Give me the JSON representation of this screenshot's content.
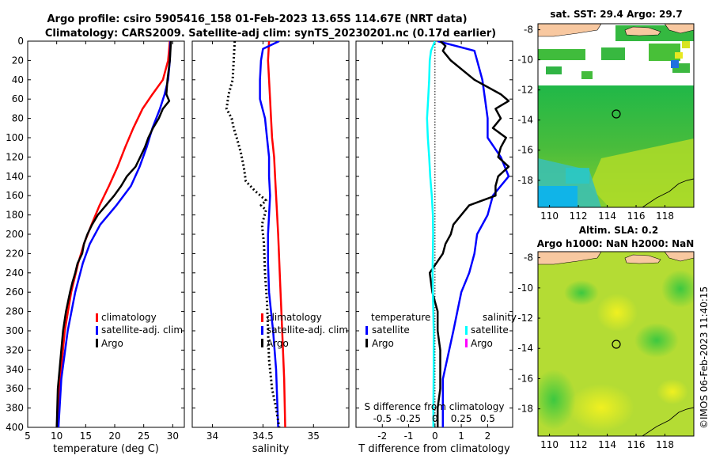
{
  "titles": {
    "line1": "Argo profile: csiro 5905416_158 01-Feb-2023 13.65S 114.67E (NRT data)",
    "line2": "Climatology: CARS2009. Satellite-adj clim: synTS_20230201.nc (0.17d earlier)"
  },
  "colors": {
    "climatology": "#ff0000",
    "satellite": "#0000ff",
    "argo": "#000000",
    "s_satellite": "#00ffff",
    "s_argo": "#ff00ff",
    "land": "#f8c8a0"
  },
  "chart_data": [
    {
      "type": "line",
      "panel": "temperature",
      "xlabel": "temperature (deg C)",
      "ylabel": "depth",
      "xlim": [
        5,
        32
      ],
      "ylim": [
        400,
        0
      ],
      "xticks": [
        "5",
        "10",
        "15",
        "20",
        "25",
        "30"
      ],
      "yticks": [
        "0",
        "20",
        "40",
        "60",
        "80",
        "100",
        "120",
        "140",
        "160",
        "180",
        "200",
        "220",
        "240",
        "260",
        "280",
        "300",
        "320",
        "340",
        "360",
        "380",
        "400"
      ],
      "legend": [
        "climatology",
        "satellite-adj. clim",
        "Argo"
      ],
      "series": [
        {
          "name": "climatology",
          "depth": [
            0,
            20,
            40,
            55,
            70,
            90,
            110,
            130,
            150,
            170,
            190,
            210,
            230,
            260,
            300,
            350,
            400
          ],
          "values": [
            29.5,
            29.2,
            28.3,
            26.5,
            24.8,
            23.2,
            21.8,
            20.5,
            19.0,
            17.4,
            16.0,
            14.7,
            13.7,
            12.5,
            11.4,
            10.6,
            10.0
          ]
        },
        {
          "name": "satellite-adj. clim",
          "depth": [
            0,
            20,
            40,
            55,
            70,
            90,
            110,
            130,
            150,
            170,
            190,
            210,
            230,
            260,
            300,
            350,
            400
          ],
          "values": [
            29.6,
            29.5,
            29.2,
            28.6,
            27.8,
            26.5,
            25.5,
            24.3,
            22.8,
            20.3,
            17.5,
            15.7,
            14.5,
            13.2,
            11.9,
            10.8,
            10.3
          ]
        },
        {
          "name": "Argo",
          "depth": [
            0,
            20,
            40,
            55,
            62,
            70,
            80,
            90,
            100,
            110,
            120,
            130,
            140,
            150,
            160,
            170,
            180,
            190,
            200,
            210,
            220,
            230,
            240,
            250,
            260,
            280,
            300,
            320,
            340,
            360,
            380,
            400
          ],
          "values": [
            29.7,
            29.5,
            29.1,
            28.9,
            29.4,
            28.3,
            27.6,
            26.6,
            25.8,
            25.2,
            24.4,
            23.6,
            22.1,
            21.1,
            19.9,
            18.5,
            17.1,
            16.1,
            15.3,
            14.7,
            14.4,
            13.6,
            13.2,
            12.7,
            12.3,
            11.6,
            11.1,
            10.8,
            10.5,
            10.2,
            10.1,
            10.0
          ]
        }
      ]
    },
    {
      "type": "line",
      "panel": "salinity",
      "xlabel": "salinity",
      "xlim": [
        33.8,
        35.35
      ],
      "ylim": [
        400,
        0
      ],
      "xticks": [
        "34",
        "34.5",
        "35"
      ],
      "legend": [
        "climatology",
        "satellite-adj. clim",
        "Argo"
      ],
      "series": [
        {
          "name": "climatology",
          "depth": [
            0,
            20,
            40,
            60,
            80,
            100,
            120,
            140,
            160,
            180,
            200,
            250,
            300,
            350,
            400
          ],
          "values": [
            34.56,
            34.55,
            34.56,
            34.57,
            34.58,
            34.59,
            34.61,
            34.62,
            34.63,
            34.64,
            34.65,
            34.67,
            34.69,
            34.71,
            34.72
          ]
        },
        {
          "name": "satellite-adj. clim",
          "depth": [
            0,
            8,
            20,
            40,
            60,
            80,
            100,
            120,
            140,
            160,
            180,
            200,
            230,
            260,
            280,
            300,
            340,
            400
          ],
          "values": [
            34.66,
            34.5,
            34.48,
            34.47,
            34.47,
            34.52,
            34.54,
            34.56,
            34.56,
            34.57,
            34.56,
            34.55,
            34.55,
            34.56,
            34.58,
            34.6,
            34.63,
            34.65
          ]
        },
        {
          "name": "Argo",
          "depth": [
            0,
            20,
            40,
            55,
            70,
            80,
            90,
            100,
            115,
            130,
            145,
            155,
            165,
            170,
            175,
            190,
            210,
            240,
            270,
            300,
            330,
            360,
            380,
            400
          ],
          "values": [
            34.22,
            34.21,
            34.2,
            34.16,
            34.14,
            34.19,
            34.21,
            34.24,
            34.28,
            34.31,
            34.33,
            34.42,
            34.53,
            34.48,
            34.53,
            34.49,
            34.51,
            34.52,
            34.54,
            34.55,
            34.56,
            34.59,
            34.63,
            34.66
          ]
        }
      ]
    },
    {
      "type": "line",
      "panel": "difference",
      "xlabel": "T difference from climatology",
      "top_xlabel": "S difference from climatology",
      "xlim": [
        -3.0,
        2.95
      ],
      "ylim": [
        400,
        0
      ],
      "xticks": [
        "-2",
        "-1",
        "0",
        "1",
        "2"
      ],
      "s_xticks": [
        "-0.5",
        "-0.25",
        "0",
        "0.25",
        "0.5"
      ],
      "legend_groups": [
        {
          "title": "temperature",
          "items": [
            "satellite",
            "Argo"
          ]
        },
        {
          "title": "salinity",
          "items": [
            "satellite",
            "Argo"
          ]
        }
      ],
      "series": [
        {
          "name": "temperature satellite",
          "depth": [
            0,
            10,
            20,
            40,
            60,
            80,
            100,
            120,
            140,
            160,
            180,
            200,
            220,
            240,
            260,
            300,
            350,
            400
          ],
          "values": [
            0.1,
            1.5,
            1.6,
            1.8,
            1.9,
            2.0,
            2.0,
            2.5,
            2.8,
            2.2,
            2.0,
            1.6,
            1.5,
            1.3,
            1.0,
            0.7,
            0.3,
            0.3
          ]
        },
        {
          "name": "temperature Argo",
          "depth": [
            0,
            5,
            10,
            20,
            40,
            55,
            62,
            70,
            80,
            90,
            100,
            110,
            120,
            130,
            140,
            150,
            160,
            170,
            180,
            190,
            200,
            210,
            220,
            240,
            260,
            280,
            300,
            320,
            340,
            360,
            380,
            400
          ],
          "values": [
            0.2,
            0.4,
            0.3,
            0.6,
            1.5,
            2.5,
            2.8,
            2.3,
            2.5,
            2.2,
            2.7,
            2.5,
            2.4,
            2.8,
            2.4,
            2.3,
            2.3,
            1.3,
            1.0,
            0.7,
            0.6,
            0.4,
            0.3,
            -0.2,
            -0.1,
            0.1,
            0.1,
            0.2,
            0.2,
            0.2,
            0.1,
            0.1
          ]
        },
        {
          "name": "salinity satellite",
          "depth": [
            0,
            10,
            20,
            40,
            60,
            80,
            100,
            120,
            140,
            160,
            180,
            200,
            240,
            260,
            300,
            340,
            380,
            400
          ],
          "values": [
            0.0,
            -0.15,
            -0.2,
            -0.22,
            -0.26,
            -0.3,
            -0.27,
            -0.22,
            -0.18,
            -0.12,
            -0.08,
            -0.07,
            -0.09,
            -0.08,
            -0.05,
            -0.05,
            -0.06,
            -0.06
          ]
        }
      ]
    }
  ],
  "maps": [
    {
      "title": "sat. SST: 29.4 Argo: 29.7",
      "yticks": [
        "-8",
        "-10",
        "-12",
        "-14",
        "-16",
        "-18"
      ],
      "xticks": [
        "110",
        "112",
        "114",
        "116",
        "118"
      ]
    },
    {
      "title1": "Altim. SLA: 0.2",
      "title2": "Argo h1000: NaN h2000: NaN",
      "yticks": [
        "-8",
        "-10",
        "-12",
        "-14",
        "-16",
        "-18"
      ],
      "xticks": [
        "110",
        "112",
        "114",
        "116",
        "118"
      ]
    }
  ],
  "stamp": "©IMOS 06-Feb-2023 11:40:15"
}
